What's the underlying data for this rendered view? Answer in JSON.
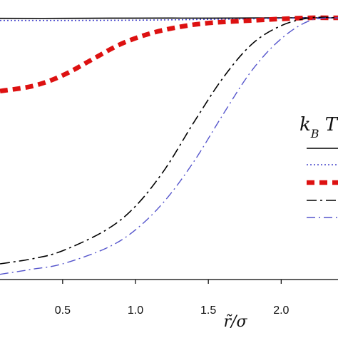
{
  "chart_data": {
    "type": "line",
    "title": "",
    "xlabel": "r̃/σ",
    "ylabel": "",
    "xlim": [
      0.07,
      2.39
    ],
    "ylim": [
      0.0,
      1.0
    ],
    "x_ticks": [
      "0.5",
      "1.0",
      "1.5",
      "2.0"
    ],
    "x_tick_values": [
      0.5,
      1.0,
      1.5,
      2.0
    ],
    "legend": {
      "title": "k_B T",
      "placement": "right"
    },
    "grid": false,
    "series": [
      {
        "style": "solid",
        "color": "#000000",
        "x": [
          0.07,
          0.5,
          1.0,
          1.5,
          2.0,
          2.2,
          2.39
        ],
        "values": [
          0.998,
          0.998,
          0.999,
          0.999,
          1.0,
          1.0,
          1.0
        ]
      },
      {
        "style": "dotted",
        "color": "#4444cc",
        "x": [
          0.07,
          0.5,
          1.0,
          1.5,
          2.0,
          2.2,
          2.39
        ],
        "values": [
          0.99,
          0.99,
          0.991,
          0.994,
          0.998,
          1.0,
          1.0
        ]
      },
      {
        "style": "thick-dashed",
        "color": "#dd1111",
        "x": [
          0.07,
          0.3,
          0.5,
          0.7,
          0.9,
          1.1,
          1.3,
          1.5,
          1.8,
          2.0,
          2.2,
          2.39
        ],
        "values": [
          0.72,
          0.74,
          0.78,
          0.84,
          0.9,
          0.94,
          0.965,
          0.98,
          0.99,
          0.996,
          1.0,
          1.0
        ]
      },
      {
        "style": "dash-dot",
        "color": "#000000",
        "x": [
          0.07,
          0.3,
          0.5,
          0.8,
          1.0,
          1.2,
          1.4,
          1.6,
          1.8,
          2.0,
          2.2,
          2.39
        ],
        "values": [
          0.06,
          0.08,
          0.11,
          0.19,
          0.28,
          0.42,
          0.6,
          0.77,
          0.9,
          0.97,
          1.0,
          1.0
        ]
      },
      {
        "style": "dash-dot-blue",
        "color": "#5555cc",
        "x": [
          0.07,
          0.3,
          0.5,
          0.8,
          1.0,
          1.2,
          1.4,
          1.6,
          1.8,
          2.0,
          2.2,
          2.39
        ],
        "values": [
          0.02,
          0.04,
          0.06,
          0.12,
          0.19,
          0.3,
          0.45,
          0.63,
          0.8,
          0.92,
          0.99,
          1.0
        ]
      }
    ]
  }
}
